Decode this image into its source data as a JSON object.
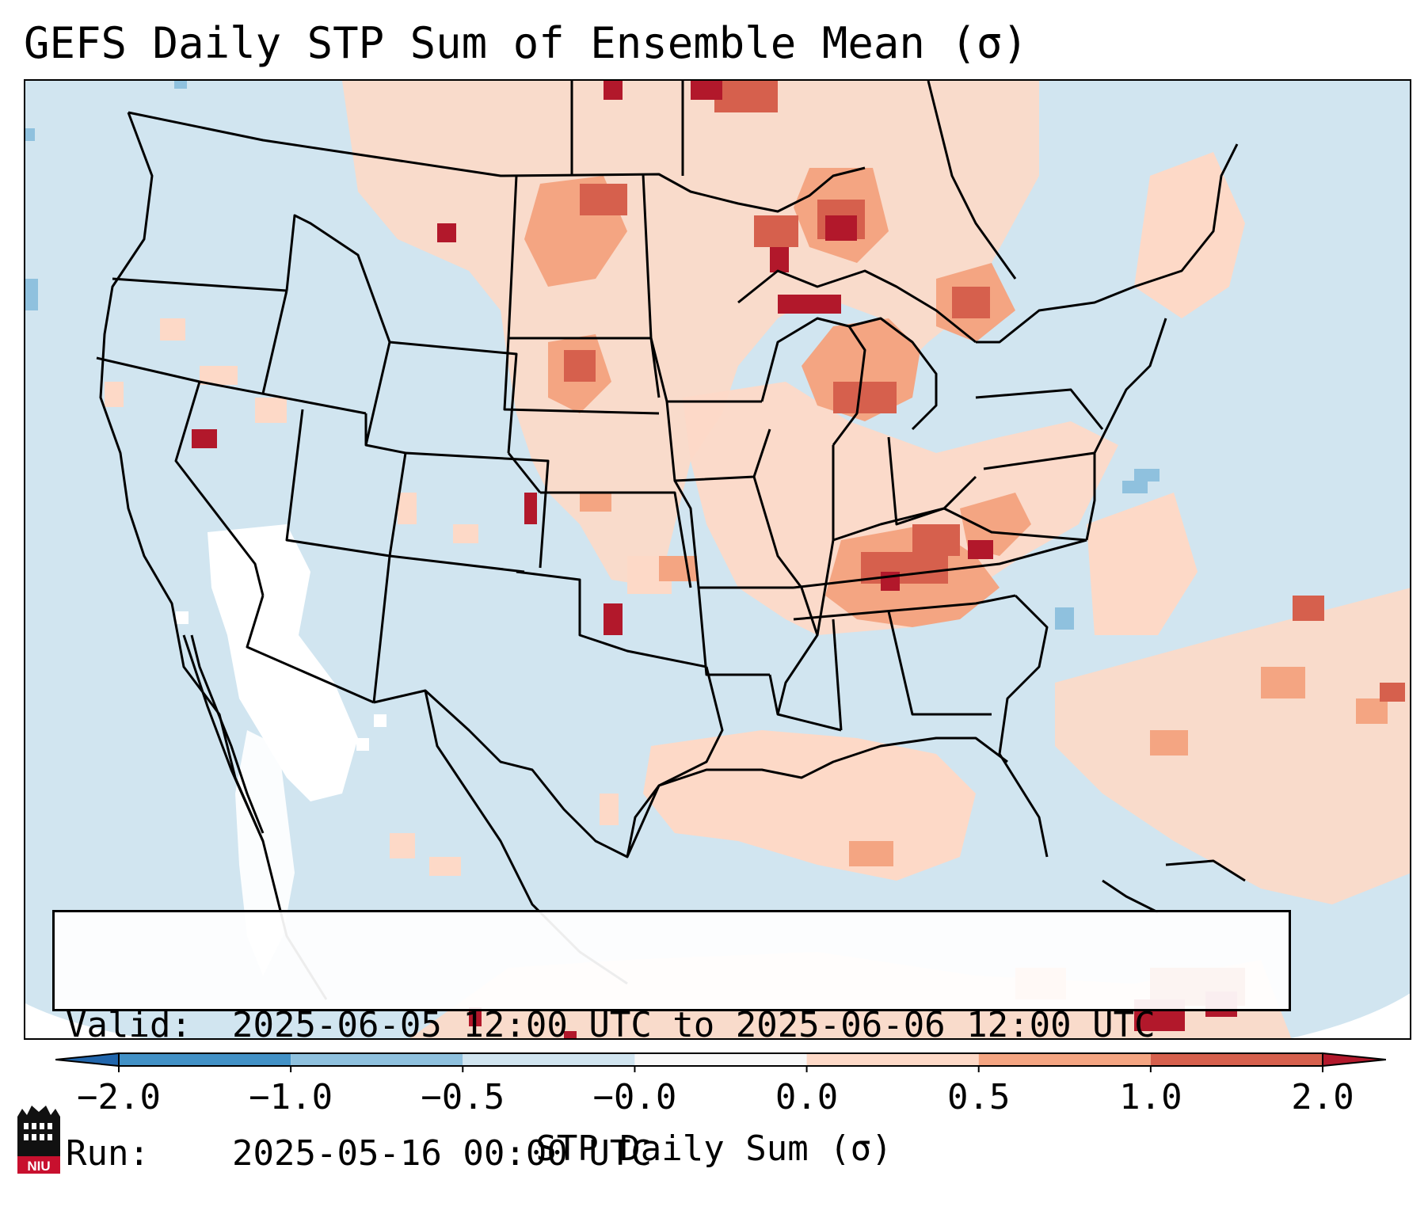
{
  "title": "GEFS Daily STP Sum of Ensemble Mean (σ)",
  "info": {
    "valid_label": "Valid:",
    "valid_value": "2025-06-05 12:00 UTC to 2025-06-06 12:00 UTC",
    "run_label": "Run:",
    "run_value": "2025-05-16 00:00 UTC"
  },
  "colorbar": {
    "label": "STP Daily Sum (σ)",
    "ticks": [
      "−2.0",
      "−1.0",
      "−0.5",
      "−0.0",
      "0.0",
      "0.5",
      "1.0",
      "2.0"
    ],
    "bins": [
      {
        "from": -2.0,
        "to": -1.0,
        "color": "#4291c6"
      },
      {
        "from": -1.0,
        "to": -0.5,
        "color": "#8fc1de"
      },
      {
        "from": -0.5,
        "to": -0.0,
        "color": "#d1e5f0"
      },
      {
        "from": -0.0,
        "to": 0.0,
        "color": "#f8f8f8"
      },
      {
        "from": 0.0,
        "to": 0.5,
        "color": "#fdd9c7"
      },
      {
        "from": 0.5,
        "to": 1.0,
        "color": "#f4a582"
      },
      {
        "from": 1.0,
        "to": 2.0,
        "color": "#d6604d"
      }
    ],
    "under_color": "#2166ac",
    "over_color": "#b2182b"
  },
  "colors": {
    "background_bin": "#d1e5f0",
    "near_zero_bin": "#ffffff",
    "border_line": "#000000"
  },
  "logo": {
    "text": "NIU"
  }
}
